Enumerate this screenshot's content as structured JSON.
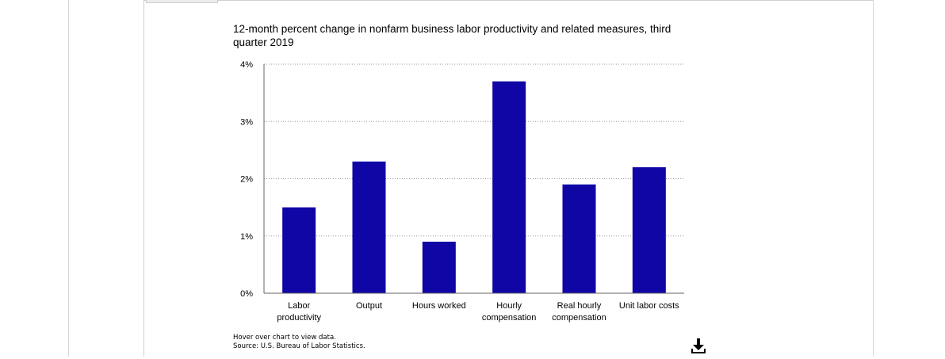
{
  "chart_data": {
    "type": "bar",
    "title": "12-month percent change in nonfarm business labor productivity and related measures, third quarter 2019",
    "categories": [
      [
        "Labor",
        "productivity"
      ],
      [
        "Output"
      ],
      [
        "Hours worked"
      ],
      [
        "Hourly",
        "compensation"
      ],
      [
        "Real hourly",
        "compensation"
      ],
      [
        "Unit labor costs"
      ]
    ],
    "values": [
      1.5,
      2.3,
      0.9,
      3.7,
      1.9,
      2.2
    ],
    "ylim": [
      0,
      4
    ],
    "yticks": [
      "0%",
      "1%",
      "2%",
      "3%",
      "4%"
    ],
    "grid": true,
    "bar_color": "#1006a6",
    "xlabel": "",
    "ylabel": ""
  },
  "notes": {
    "hover": "Hover over chart to view data.",
    "source": "Source: U.S. Bureau of Labor Statistics."
  },
  "download_icon": "download-icon"
}
